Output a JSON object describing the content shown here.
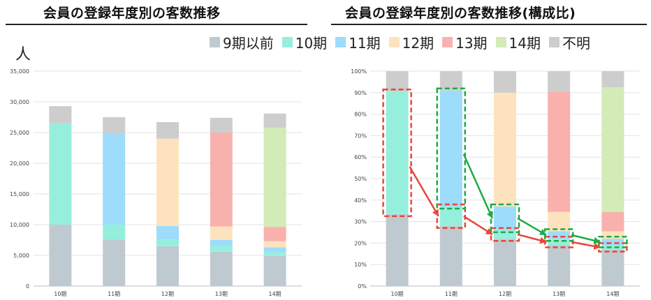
{
  "titles": {
    "left": "会員の登録年度別の客数推移",
    "right": "会員の登録年度別の客数推移(構成比)"
  },
  "unit_label": "人",
  "legend": [
    {
      "label": "9期以前",
      "color": "#bfcad0"
    },
    {
      "label": "10期",
      "color": "#96efdc"
    },
    {
      "label": "11期",
      "color": "#9ddcfb"
    },
    {
      "label": "12期",
      "color": "#fde3bd"
    },
    {
      "label": "13期",
      "color": "#f9b1ae"
    },
    {
      "label": "14期",
      "color": "#d3ebb6"
    },
    {
      "label": "不明",
      "color": "#cdcdcd"
    }
  ],
  "chart_data": [
    {
      "type": "bar",
      "stacked": true,
      "title": "会員の登録年度別の客数推移",
      "ylabel": "人",
      "categories": [
        "10期",
        "11期",
        "12期",
        "13期",
        "14期"
      ],
      "ylim": [
        0,
        35000
      ],
      "yticks": [
        "0",
        "5,000",
        "10,000",
        "15,000",
        "20,000",
        "25,000",
        "30,000",
        "35,000"
      ],
      "series": [
        {
          "name": "9期以前",
          "color": "#bfcad0",
          "values": [
            10000,
            7600,
            6500,
            5600,
            4900
          ]
        },
        {
          "name": "10期",
          "color": "#96efdc",
          "values": [
            16500,
            2400,
            1100,
            900,
            600
          ]
        },
        {
          "name": "11期",
          "color": "#9ddcfb",
          "values": [
            0,
            14900,
            2200,
            1000,
            800
          ]
        },
        {
          "name": "12期",
          "color": "#fde3bd",
          "values": [
            0,
            0,
            14200,
            2200,
            1000
          ]
        },
        {
          "name": "13期",
          "color": "#f9b1ae",
          "values": [
            0,
            0,
            0,
            15300,
            2300
          ]
        },
        {
          "name": "14期",
          "color": "#d3ebb6",
          "values": [
            0,
            0,
            0,
            0,
            16200
          ]
        },
        {
          "name": "不明",
          "color": "#cdcdcd",
          "values": [
            2800,
            2600,
            2700,
            2400,
            2300
          ]
        }
      ]
    },
    {
      "type": "bar",
      "stacked": true,
      "title": "会員の登録年度別の客数推移(構成比)",
      "categories": [
        "10期",
        "11期",
        "12期",
        "13期",
        "14期"
      ],
      "ylim": [
        0,
        100
      ],
      "yticks": [
        "0%",
        "10%",
        "20%",
        "30%",
        "40%",
        "50%",
        "60%",
        "70%",
        "80%",
        "90%",
        "100%"
      ],
      "series": [
        {
          "name": "9期以前",
          "color": "#bfcad0",
          "values": [
            33.5,
            28,
            22,
            19,
            17
          ]
        },
        {
          "name": "10期",
          "color": "#96efdc",
          "values": [
            57,
            9,
            4,
            3,
            2
          ]
        },
        {
          "name": "11期",
          "color": "#9ddcfb",
          "values": [
            0,
            54,
            11,
            3.5,
            3
          ]
        },
        {
          "name": "12期",
          "color": "#fde3bd",
          "values": [
            0,
            0,
            53,
            9,
            3.5
          ]
        },
        {
          "name": "13期",
          "color": "#f9b1ae",
          "values": [
            0,
            0,
            0,
            56,
            9
          ]
        },
        {
          "name": "14期",
          "color": "#d3ebb6",
          "values": [
            0,
            0,
            0,
            0,
            58
          ]
        },
        {
          "name": "不明",
          "color": "#cdcdcd",
          "values": [
            9.5,
            9,
            10,
            9.5,
            7.5
          ]
        }
      ]
    }
  ]
}
